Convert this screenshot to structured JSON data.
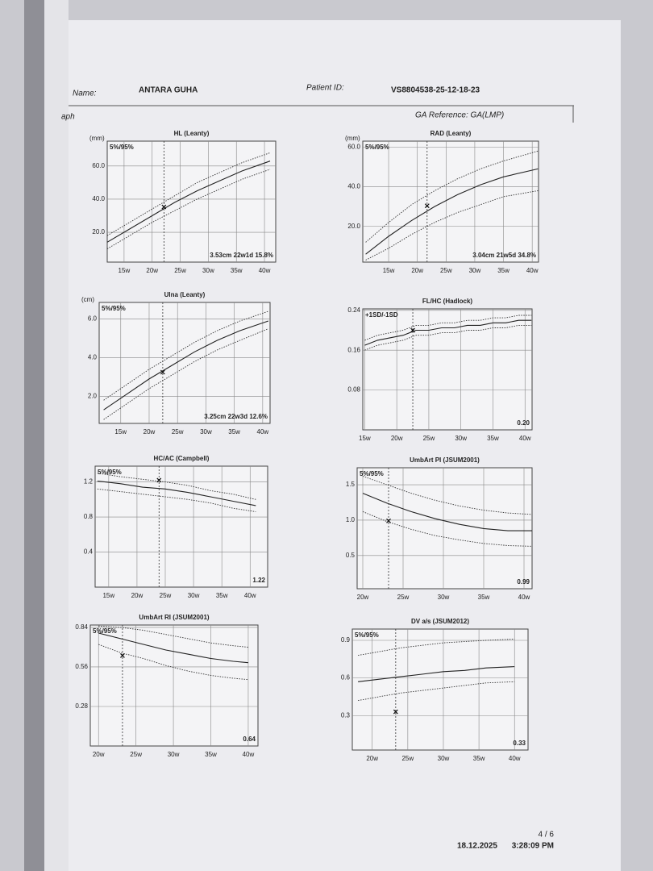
{
  "header": {
    "name_label": "Name:",
    "name": "ANTARA GUHA",
    "id_label": "Patient ID:",
    "patient_id": "VS8804538-25-12-18-23",
    "section": "aph",
    "ga_reference": "GA Reference: GA(LMP)"
  },
  "footer": {
    "page": "4 / 6",
    "date": "18.12.2025",
    "time": "3:28:09 PM"
  },
  "chart_data": [
    {
      "type": "line",
      "title": "HL (Leanty)",
      "unit": "(mm)",
      "legend": "5%/95%",
      "annotation": "3.53cm 22w1d 15.8%",
      "xlim": [
        12,
        42
      ],
      "ylim": [
        2,
        75
      ],
      "xticks": [
        {
          "value": 15,
          "label": "15w"
        },
        {
          "value": 20,
          "label": "20w"
        },
        {
          "value": 25,
          "label": "25w"
        },
        {
          "value": 30,
          "label": "30w"
        },
        {
          "value": 35,
          "label": "35w"
        },
        {
          "value": 40,
          "label": "40w"
        }
      ],
      "yticks": [
        {
          "value": 20,
          "label": "20.0"
        },
        {
          "value": 40,
          "label": "40.0"
        },
        {
          "value": 60,
          "label": "60.0"
        }
      ],
      "grid": true,
      "x": [
        12,
        16,
        20,
        24,
        28,
        32,
        36,
        41
      ],
      "series": [
        {
          "color": "#333",
          "style": "dotted",
          "values": [
            10,
            18,
            26,
            33,
            40,
            46,
            52,
            58
          ]
        },
        {
          "color": "#222",
          "style": "solid",
          "values": [
            14,
            22,
            30,
            38,
            45,
            51,
            57,
            63
          ]
        },
        {
          "color": "#333",
          "style": "dotted",
          "values": [
            18,
            26,
            34,
            42,
            50,
            56,
            62,
            68
          ]
        }
      ],
      "marker": {
        "x": 22.1,
        "y": 35.3
      }
    },
    {
      "type": "line",
      "title": "RAD (Leanty)",
      "unit": "(mm)",
      "legend": "5%/95%",
      "annotation": "3.04cm 21w5d 34.8%",
      "xlim": [
        10.5,
        41.1
      ],
      "ylim": [
        2,
        63
      ],
      "xticks": [
        {
          "value": 15,
          "label": "15w"
        },
        {
          "value": 20,
          "label": "20w"
        },
        {
          "value": 25,
          "label": "25w"
        },
        {
          "value": 30,
          "label": "30w"
        },
        {
          "value": 35,
          "label": "35w"
        },
        {
          "value": 40,
          "label": "40w"
        }
      ],
      "yticks": [
        {
          "value": 20,
          "label": "20.0"
        },
        {
          "value": 40,
          "label": "40.0"
        },
        {
          "value": 60,
          "label": "60.0"
        }
      ],
      "grid": true,
      "x": [
        11,
        15,
        19,
        23,
        27,
        31,
        35,
        41
      ],
      "series": [
        {
          "color": "#333",
          "style": "dotted",
          "values": [
            3,
            9,
            16,
            22,
            27,
            31,
            35,
            38
          ]
        },
        {
          "color": "#222",
          "style": "solid",
          "values": [
            6,
            15,
            23,
            30,
            36,
            41,
            45,
            49
          ]
        },
        {
          "color": "#333",
          "style": "dotted",
          "values": [
            12,
            22,
            31,
            38,
            44,
            49,
            53,
            58
          ]
        }
      ],
      "marker": {
        "x": 21.7,
        "y": 30.4
      }
    },
    {
      "type": "line",
      "title": "Ulna (Leanty)",
      "unit": "(cm)",
      "legend": "5%/95%",
      "annotation": "3.25cm 22w3d 12.6%",
      "xlim": [
        11.2,
        41.3
      ],
      "ylim": [
        0.6,
        6.86
      ],
      "xticks": [
        {
          "value": 15,
          "label": "15w"
        },
        {
          "value": 20,
          "label": "20w"
        },
        {
          "value": 25,
          "label": "25w"
        },
        {
          "value": 30,
          "label": "30w"
        },
        {
          "value": 35,
          "label": "35w"
        },
        {
          "value": 40,
          "label": "40w"
        }
      ],
      "yticks": [
        {
          "value": 2,
          "label": "2.0"
        },
        {
          "value": 4,
          "label": "4.0"
        },
        {
          "value": 6,
          "label": "6.0"
        }
      ],
      "grid": true,
      "x": [
        12,
        16,
        20,
        24,
        28,
        32,
        36,
        41
      ],
      "series": [
        {
          "color": "#333",
          "style": "dotted",
          "values": [
            0.8,
            1.6,
            2.4,
            3.1,
            3.8,
            4.4,
            4.9,
            5.5
          ]
        },
        {
          "color": "#222",
          "style": "solid",
          "values": [
            1.3,
            2.1,
            2.9,
            3.6,
            4.3,
            4.9,
            5.4,
            5.9
          ]
        },
        {
          "color": "#333",
          "style": "dotted",
          "values": [
            1.8,
            2.6,
            3.4,
            4.1,
            4.8,
            5.4,
            5.9,
            6.4
          ]
        }
      ],
      "marker": {
        "x": 22.4,
        "y": 3.25
      }
    },
    {
      "type": "line",
      "title": "FL/HC (Hadlock)",
      "legend": "+1SD/-1SD",
      "annotation": "0.20",
      "xlim": [
        14.7,
        41.1
      ],
      "ylim": [
        0,
        0.243
      ],
      "xticks": [
        {
          "value": 15,
          "label": "15w"
        },
        {
          "value": 20,
          "label": "20w"
        },
        {
          "value": 25,
          "label": "25w"
        },
        {
          "value": 30,
          "label": "30w"
        },
        {
          "value": 35,
          "label": "35w"
        },
        {
          "value": 40,
          "label": "40w"
        }
      ],
      "yticks": [
        0.08,
        0.16,
        0.24
      ],
      "grid": true,
      "x": [
        15,
        17,
        19,
        21,
        23,
        25,
        27,
        29,
        31,
        33,
        35,
        37,
        39,
        41
      ],
      "series": [
        {
          "color": "#333",
          "style": "dotted",
          "values": [
            0.16,
            0.17,
            0.175,
            0.18,
            0.19,
            0.19,
            0.195,
            0.195,
            0.2,
            0.2,
            0.205,
            0.205,
            0.21,
            0.21
          ]
        },
        {
          "color": "#222",
          "style": "solid",
          "values": [
            0.17,
            0.18,
            0.185,
            0.19,
            0.2,
            0.2,
            0.205,
            0.205,
            0.21,
            0.21,
            0.215,
            0.215,
            0.22,
            0.22
          ]
        },
        {
          "color": "#333",
          "style": "dotted",
          "values": [
            0.18,
            0.19,
            0.195,
            0.2,
            0.21,
            0.21,
            0.215,
            0.215,
            0.22,
            0.22,
            0.225,
            0.225,
            0.23,
            0.23
          ]
        }
      ],
      "marker": {
        "x": 22.5,
        "y": 0.2
      }
    },
    {
      "type": "line",
      "title": "HC/AC (Campbell)",
      "legend": "5%/95%",
      "annotation": "1.22",
      "xlim": [
        12.6,
        43.1
      ],
      "ylim": [
        0,
        1.38
      ],
      "xticks": [
        {
          "value": 15,
          "label": "15w"
        },
        {
          "value": 20,
          "label": "20w"
        },
        {
          "value": 25,
          "label": "25w"
        },
        {
          "value": 30,
          "label": "30w"
        },
        {
          "value": 35,
          "label": "35w"
        },
        {
          "value": 40,
          "label": "40w"
        }
      ],
      "yticks": [
        0.4,
        0.8,
        1.2
      ],
      "grid": true,
      "x": [
        13,
        17,
        21,
        25,
        29,
        33,
        37,
        41
      ],
      "series": [
        {
          "color": "#333",
          "style": "dotted",
          "values": [
            1.12,
            1.09,
            1.06,
            1.03,
            1,
            0.96,
            0.9,
            0.86
          ]
        },
        {
          "color": "#222",
          "style": "solid",
          "values": [
            1.21,
            1.18,
            1.14,
            1.12,
            1.08,
            1.03,
            0.98,
            0.93
          ]
        },
        {
          "color": "#333",
          "style": "dotted",
          "values": [
            1.3,
            1.26,
            1.23,
            1.2,
            1.16,
            1.1,
            1.06,
            1
          ]
        }
      ],
      "marker": {
        "x": 23.9,
        "y": 1.22
      }
    },
    {
      "type": "line",
      "title": "UmbArt PI (JSUM2001)",
      "legend": "5%/95%",
      "annotation": "0.99",
      "xlim": [
        19.3,
        41
      ],
      "ylim": [
        0.03,
        1.74
      ],
      "xticks": [
        {
          "value": 20,
          "label": "20w"
        },
        {
          "value": 25,
          "label": "25w"
        },
        {
          "value": 30,
          "label": "30w"
        },
        {
          "value": 35,
          "label": "35w"
        },
        {
          "value": 40,
          "label": "40w"
        }
      ],
      "yticks": [
        0.5,
        {
          "value": 1,
          "label": "1.0"
        },
        1.5
      ],
      "grid": true,
      "x": [
        20,
        23,
        26,
        29,
        32,
        35,
        38,
        41
      ],
      "series": [
        {
          "color": "#333",
          "style": "dotted",
          "values": [
            1.12,
            0.98,
            0.87,
            0.78,
            0.72,
            0.67,
            0.64,
            0.63
          ]
        },
        {
          "color": "#222",
          "style": "solid",
          "values": [
            1.38,
            1.24,
            1.12,
            1.02,
            0.94,
            0.88,
            0.85,
            0.85
          ]
        },
        {
          "color": "#333",
          "style": "dotted",
          "values": [
            1.62,
            1.5,
            1.38,
            1.28,
            1.2,
            1.14,
            1.1,
            1.08
          ]
        }
      ],
      "marker": {
        "x": 23.2,
        "y": 0.99
      }
    },
    {
      "type": "line",
      "title": "UmbArt RI (JSUM2001)",
      "legend": "5%/95%",
      "annotation": "0.64",
      "xlim": [
        18.9,
        41.3
      ],
      "ylim": [
        0,
        0.857
      ],
      "xticks": [
        {
          "value": 20,
          "label": "20w"
        },
        {
          "value": 25,
          "label": "25w"
        },
        {
          "value": 30,
          "label": "30w"
        },
        {
          "value": 35,
          "label": "35w"
        },
        {
          "value": 40,
          "label": "40w"
        }
      ],
      "yticks": [
        0.28,
        0.56,
        0.84
      ],
      "grid": true,
      "x": [
        20,
        23,
        26,
        29,
        32,
        35,
        38,
        40
      ],
      "series": [
        {
          "color": "#333",
          "style": "dotted",
          "values": [
            0.72,
            0.66,
            0.62,
            0.57,
            0.53,
            0.5,
            0.48,
            0.47
          ]
        },
        {
          "color": "#222",
          "style": "solid",
          "values": [
            0.8,
            0.76,
            0.72,
            0.68,
            0.65,
            0.62,
            0.6,
            0.59
          ]
        },
        {
          "color": "#333",
          "style": "dotted",
          "values": [
            0.85,
            0.84,
            0.82,
            0.79,
            0.76,
            0.73,
            0.71,
            0.7
          ]
        }
      ],
      "marker": {
        "x": 23.2,
        "y": 0.64
      }
    },
    {
      "type": "line",
      "title": "DV a/s (JSUM2012)",
      "legend": "5%/95%",
      "annotation": "0.33",
      "xlim": [
        17.2,
        41.9
      ],
      "ylim": [
        0.025,
        0.99
      ],
      "xticks": [
        {
          "value": 20,
          "label": "20w"
        },
        {
          "value": 25,
          "label": "25w"
        },
        {
          "value": 30,
          "label": "30w"
        },
        {
          "value": 35,
          "label": "35w"
        },
        {
          "value": 40,
          "label": "40w"
        }
      ],
      "yticks": [
        0.3,
        0.6,
        0.9
      ],
      "grid": true,
      "x": [
        18,
        21,
        24,
        27,
        30,
        33,
        36,
        40
      ],
      "series": [
        {
          "color": "#333",
          "style": "dotted",
          "values": [
            0.42,
            0.45,
            0.48,
            0.5,
            0.52,
            0.54,
            0.56,
            0.57
          ]
        },
        {
          "color": "#222",
          "style": "solid",
          "values": [
            0.57,
            0.59,
            0.61,
            0.63,
            0.65,
            0.66,
            0.68,
            0.69
          ]
        },
        {
          "color": "#333",
          "style": "dotted",
          "values": [
            0.78,
            0.81,
            0.84,
            0.86,
            0.88,
            0.89,
            0.9,
            0.91
          ]
        }
      ],
      "marker": {
        "x": 23.3,
        "y": 0.33
      }
    }
  ]
}
